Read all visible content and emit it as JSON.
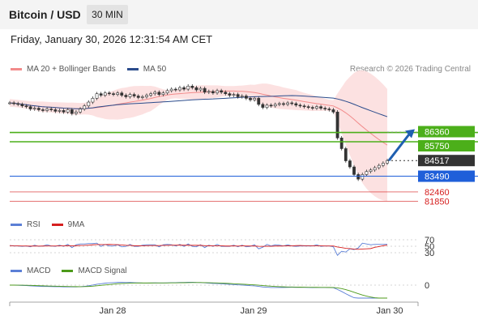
{
  "header": {
    "title": "Bitcoin / USD",
    "interval": "30 MIN"
  },
  "timestamp": "Friday, January 30, 2026 12:31:54 AM CET",
  "copyright": "Research © 2026 Trading Central",
  "legends": {
    "main": [
      {
        "label": "MA 20 + Bollinger Bands",
        "color": "#f28b8b"
      },
      {
        "label": "MA 50",
        "color": "#2b4c8c"
      }
    ],
    "rsi": [
      {
        "label": "RSI",
        "color": "#5b7fd6"
      },
      {
        "label": "9MA",
        "color": "#d61f1f"
      }
    ],
    "macd": [
      {
        "label": "MACD",
        "color": "#5b7fd6"
      },
      {
        "label": "MACD Signal",
        "color": "#4c9a1a"
      }
    ]
  },
  "chart_data": {
    "type": "candlestick",
    "x_labels": [
      "Jan 28",
      "Jan 29",
      "Jan 30"
    ],
    "price_levels": [
      {
        "value": 86360,
        "label": "86360",
        "kind": "resistance",
        "color": "#4caf1a"
      },
      {
        "value": 85750,
        "label": "85750",
        "kind": "resistance",
        "color": "#4caf1a"
      },
      {
        "value": 84517,
        "label": "84517",
        "kind": "last",
        "color": "#333333"
      },
      {
        "value": 83490,
        "label": "83490",
        "kind": "pivot",
        "color": "#1f5fd9"
      },
      {
        "value": 82460,
        "label": "82460",
        "kind": "support",
        "color": "#d62020"
      },
      {
        "value": 81850,
        "label": "81850",
        "kind": "support",
        "color": "#d62020"
      }
    ],
    "ylim": [
      81500,
      90000
    ],
    "close": [
      88300,
      88250,
      88200,
      88100,
      88050,
      87900,
      87950,
      87850,
      87800,
      87900,
      87850,
      87750,
      87800,
      87700,
      87850,
      87600,
      87700,
      87900,
      88100,
      88350,
      88600,
      88900,
      88800,
      88950,
      88900,
      88850,
      88950,
      88800,
      88700,
      88850,
      88750,
      88650,
      88700,
      88800,
      88900,
      89000,
      88850,
      88950,
      89100,
      89200,
      89150,
      89300,
      89200,
      89400,
      89300,
      89150,
      89250,
      89000,
      89050,
      88950,
      89100,
      89000,
      88900,
      88800,
      88850,
      88700,
      88750,
      88600,
      88500,
      88600,
      88200,
      88000,
      88150,
      88100,
      88200,
      88250,
      88200,
      88300,
      88250,
      88150,
      88100,
      88050,
      88000,
      87950,
      88050,
      87950,
      87900,
      87850,
      87700,
      86000,
      85300,
      84500,
      84100,
      83600,
      83300,
      83600,
      83800,
      83900,
      84050,
      84200,
      84350,
      84517
    ],
    "rsi_levels": [
      70,
      50,
      30
    ],
    "macd_levels": [
      0
    ],
    "forecast_arrow": {
      "from": 84517,
      "to": 86360
    }
  }
}
